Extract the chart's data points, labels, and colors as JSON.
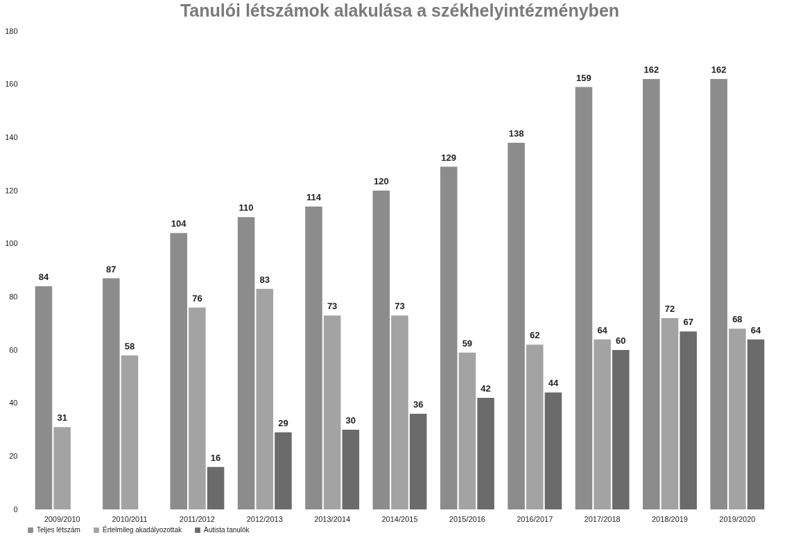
{
  "chart_data": {
    "type": "bar",
    "title": "Tanulói létszámok alakulása a székhelyintézményben",
    "categories": [
      "2009/2010",
      "2010/2011",
      "2011/2012",
      "2012/2013",
      "2013/2014",
      "2014/2015",
      "2015/2016",
      "2016/2017",
      "2017/2018",
      "2018/2019",
      "2019/2020"
    ],
    "series": [
      {
        "name": "Teljes létszám",
        "color": "#8c8c8c",
        "values": [
          84,
          87,
          104,
          110,
          114,
          120,
          129,
          138,
          159,
          162,
          162
        ]
      },
      {
        "name": "Értelmileg akadályozottak",
        "color": "#a3a3a3",
        "values": [
          31,
          58,
          76,
          83,
          73,
          73,
          59,
          62,
          64,
          72,
          68
        ]
      },
      {
        "name": "Autista tanulók",
        "color": "#6b6b6b",
        "values": [
          null,
          null,
          16,
          29,
          30,
          36,
          42,
          44,
          60,
          67,
          64
        ]
      }
    ],
    "ylim": [
      0,
      180
    ],
    "yticks": [
      0,
      20,
      40,
      60,
      80,
      100,
      120,
      140,
      160,
      180
    ],
    "data_labels": true,
    "legend": "bottom"
  }
}
